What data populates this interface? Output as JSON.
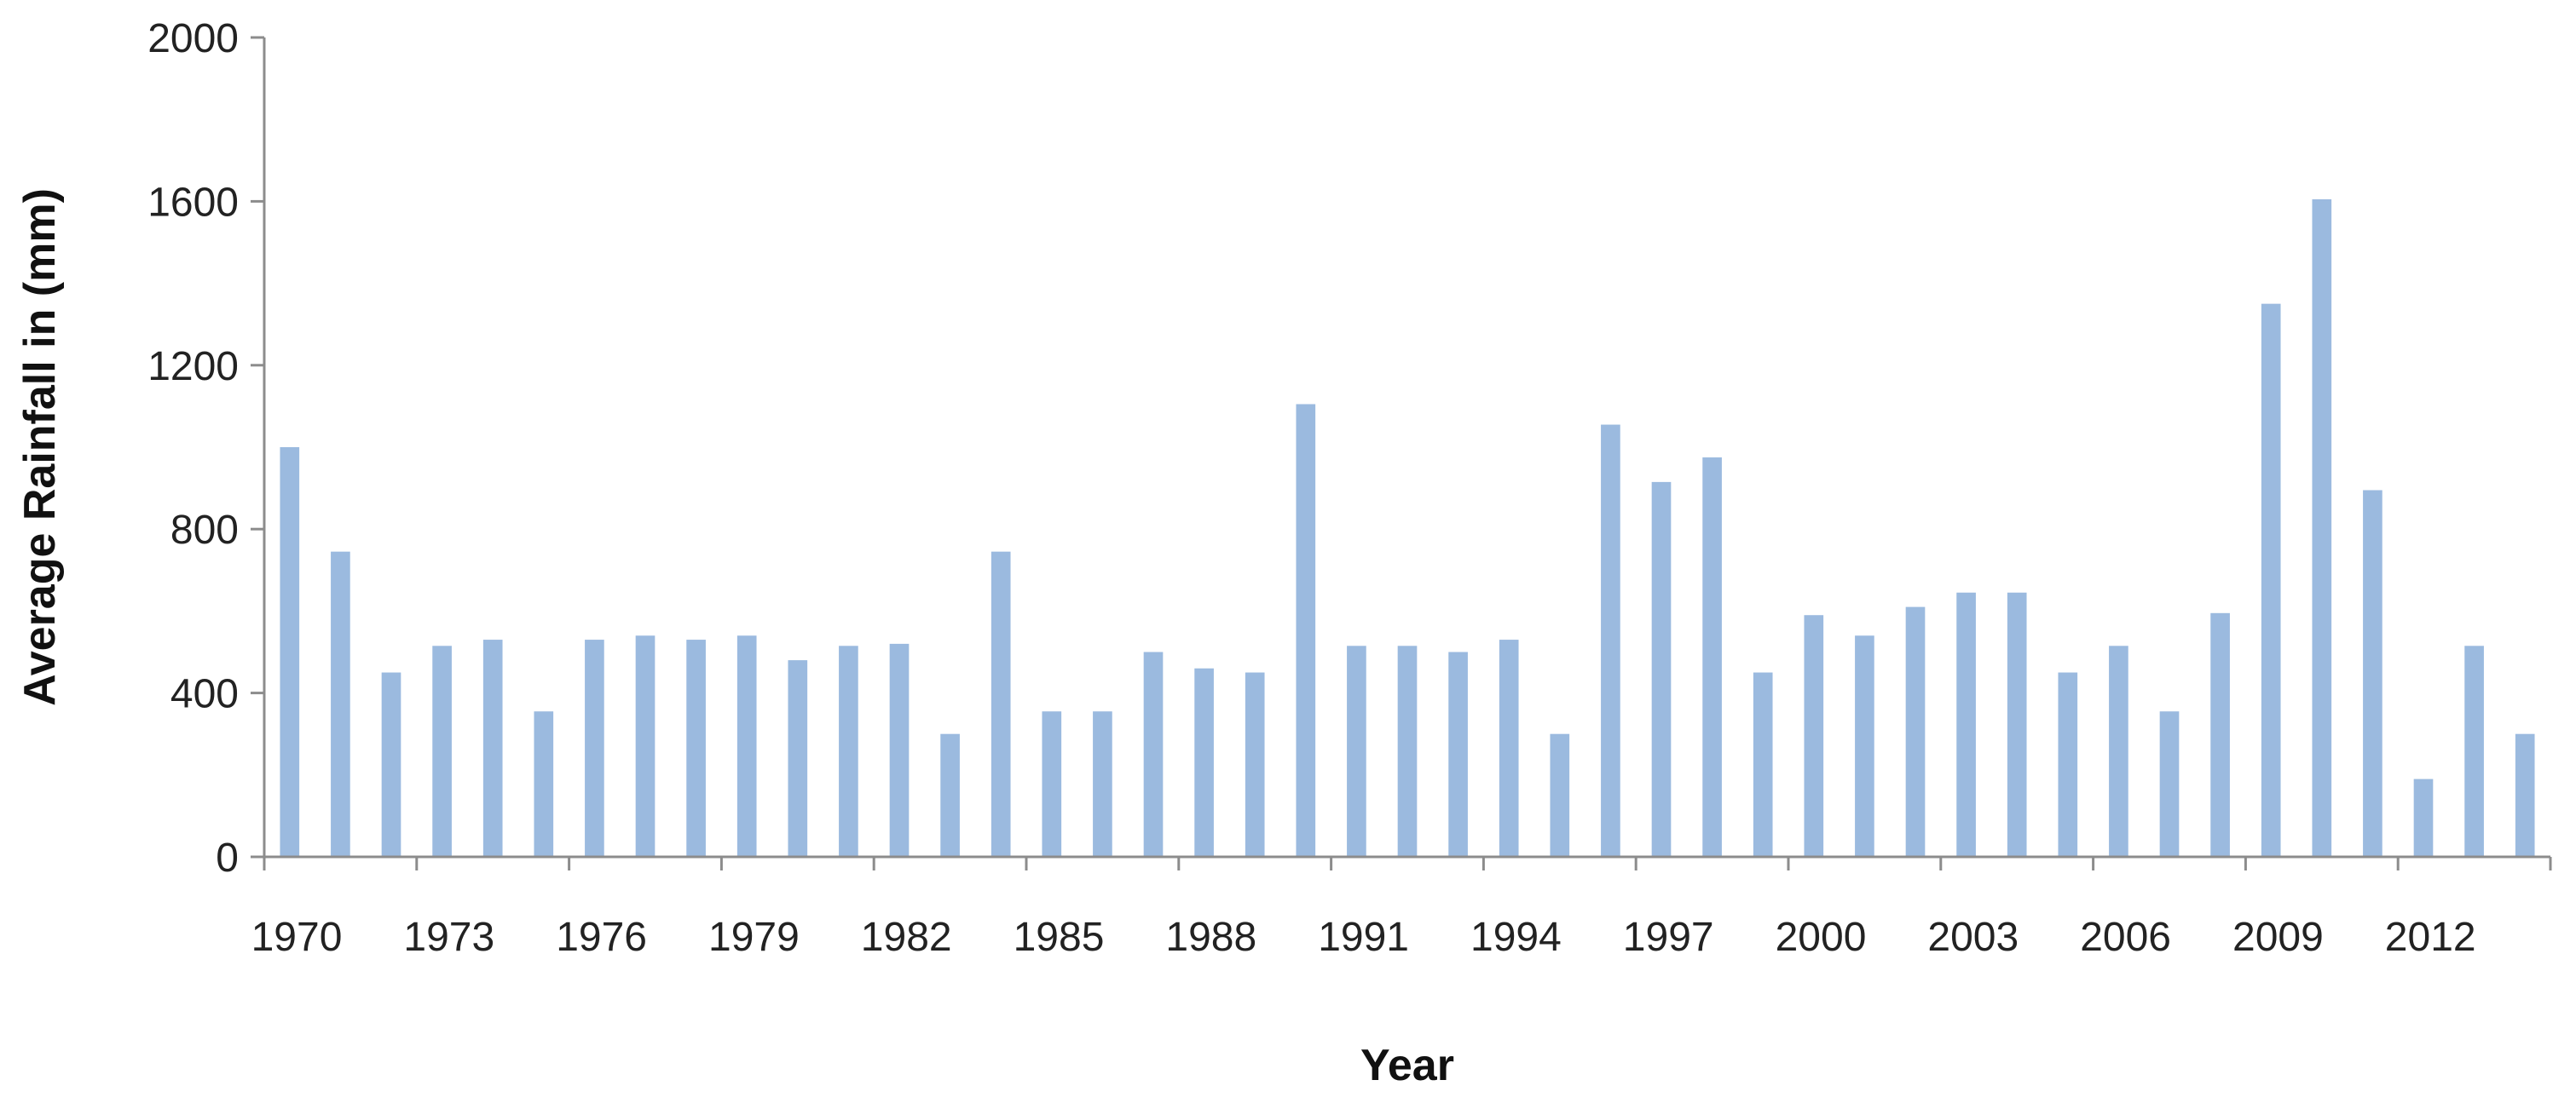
{
  "chart_data": {
    "type": "bar",
    "title": "",
    "xlabel": "Year",
    "ylabel": "Average Rainfall in (mm)",
    "ylim": [
      0,
      2000
    ],
    "yticks": [
      "0",
      "400",
      "800",
      "1200",
      "1600",
      "2000"
    ],
    "grid": false,
    "legend": "none",
    "bar_color": "#9bbadf",
    "axis_color": "#8c8c8c",
    "xtick_labels": [
      "1970",
      "1973",
      "1976",
      "1979",
      "1982",
      "1985",
      "1988",
      "1991",
      "1994",
      "1997",
      "2000",
      "2003",
      "2006",
      "2009",
      "2012"
    ],
    "categories": [
      "1970",
      "1971",
      "1972",
      "1973",
      "1974",
      "1975",
      "1976",
      "1977",
      "1978",
      "1979",
      "1980",
      "1981",
      "1982",
      "1983",
      "1984",
      "1985",
      "1986",
      "1987",
      "1988",
      "1989",
      "1990",
      "1991",
      "1992",
      "1993",
      "1994",
      "1995",
      "1996",
      "1997",
      "1998",
      "1999",
      "2000",
      "2001",
      "2002",
      "2003",
      "2004",
      "2005",
      "2006",
      "2007",
      "2008",
      "2009",
      "2010",
      "2011",
      "2012",
      "2013",
      "2014"
    ],
    "values": [
      1000,
      745,
      450,
      515,
      530,
      355,
      530,
      540,
      530,
      540,
      480,
      515,
      520,
      300,
      745,
      355,
      355,
      500,
      460,
      450,
      1105,
      515,
      515,
      500,
      530,
      300,
      1055,
      915,
      975,
      450,
      590,
      540,
      610,
      645,
      645,
      450,
      515,
      355,
      595,
      1350,
      1605,
      895,
      190,
      515,
      300
    ]
  }
}
